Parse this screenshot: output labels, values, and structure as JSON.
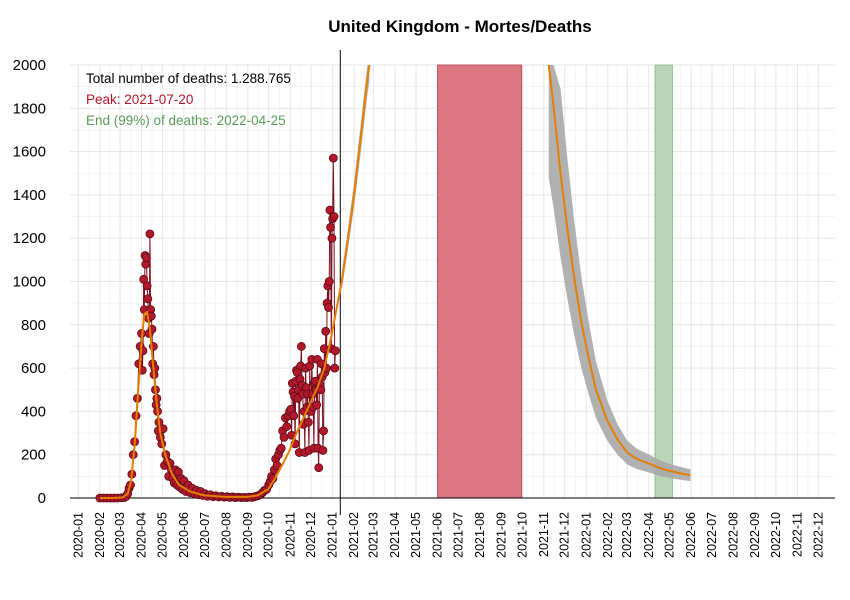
{
  "chart_data": {
    "type": "line",
    "title": "United Kingdom - Mortes/Deaths",
    "xlabel": "",
    "ylabel": "",
    "ylim": [
      0,
      2000
    ],
    "xlim": [
      "2019-12-20",
      "2022-12-25"
    ],
    "grid": true,
    "yticks": [
      0,
      200,
      400,
      600,
      800,
      1000,
      1200,
      1400,
      1600,
      1800,
      2000
    ],
    "ytick_labels": [
      "0",
      "200",
      "400",
      "600",
      "800",
      "1000",
      "1200",
      "1400",
      "1600",
      "1800",
      "2000"
    ],
    "xticks": [
      "2020-01-01",
      "2020-02-01",
      "2020-03-01",
      "2020-04-01",
      "2020-05-01",
      "2020-06-01",
      "2020-07-01",
      "2020-08-01",
      "2020-09-01",
      "2020-10-01",
      "2020-11-01",
      "2020-12-01",
      "2021-01-01",
      "2021-02-01",
      "2021-03-01",
      "2021-04-01",
      "2021-05-01",
      "2021-06-01",
      "2021-07-01",
      "2021-08-01",
      "2021-09-01",
      "2021-10-01",
      "2021-11-01",
      "2021-12-01",
      "2022-01-01",
      "2022-02-01",
      "2022-03-01",
      "2022-04-01",
      "2022-05-01",
      "2022-06-01",
      "2022-07-01",
      "2022-08-01",
      "2022-09-01",
      "2022-10-01",
      "2022-11-01",
      "2022-12-01"
    ],
    "xtick_labels": [
      "2020-01",
      "2020-02",
      "2020-03",
      "2020-04",
      "2020-05",
      "2020-06",
      "2020-07",
      "2020-08",
      "2020-09",
      "2020-10",
      "2020-11",
      "2020-12",
      "2021-01",
      "2021-02",
      "2021-03",
      "2021-04",
      "2021-05",
      "2021-06",
      "2021-07",
      "2021-08",
      "2021-09",
      "2021-10",
      "2021-11",
      "2021-12",
      "2022-01",
      "2022-02",
      "2022-03",
      "2022-04",
      "2022-05",
      "2022-06",
      "2022-07",
      "2022-08",
      "2022-09",
      "2022-10",
      "2022-11",
      "2022-12"
    ],
    "annotations": [
      {
        "text": "Total number of deaths: 1.288.765",
        "color": "#000000"
      },
      {
        "text": "Peak: 2021-07-20",
        "color": "#b2182b"
      },
      {
        "text": "End (99%) of deaths: 2022-04-25",
        "color": "#5a9e5a"
      }
    ],
    "current_date": "2021-01-12",
    "peak_band": {
      "start": "2021-06-01",
      "end": "2021-09-30",
      "color": "#d9707a"
    },
    "end_band": {
      "start": "2022-04-10",
      "end": "2022-05-05",
      "color": "#b5d3b5"
    },
    "colors": {
      "fit": "#e67e00",
      "observed": "#b2182b",
      "interval": "#a9a9a9"
    },
    "series": [
      {
        "kind": "observed",
        "points": [
          [
            "2020-02-01",
            0
          ],
          [
            "2020-02-06",
            0
          ],
          [
            "2020-02-11",
            0
          ],
          [
            "2020-02-16",
            0
          ],
          [
            "2020-02-21",
            0
          ],
          [
            "2020-02-26",
            0
          ],
          [
            "2020-03-03",
            1
          ],
          [
            "2020-03-07",
            2
          ],
          [
            "2020-03-10",
            8
          ],
          [
            "2020-03-12",
            20
          ],
          [
            "2020-03-14",
            45
          ],
          [
            "2020-03-16",
            60
          ],
          [
            "2020-03-18",
            110
          ],
          [
            "2020-03-20",
            200
          ],
          [
            "2020-03-22",
            260
          ],
          [
            "2020-03-24",
            380
          ],
          [
            "2020-03-26",
            460
          ],
          [
            "2020-03-28",
            620
          ],
          [
            "2020-03-30",
            700
          ],
          [
            "2020-04-01",
            760
          ],
          [
            "2020-04-02",
            590
          ],
          [
            "2020-04-03",
            680
          ],
          [
            "2020-04-04",
            1010
          ],
          [
            "2020-04-05",
            870
          ],
          [
            "2020-04-06",
            1120
          ],
          [
            "2020-04-07",
            1080
          ],
          [
            "2020-04-08",
            1110
          ],
          [
            "2020-04-09",
            980
          ],
          [
            "2020-04-10",
            920
          ],
          [
            "2020-04-11",
            830
          ],
          [
            "2020-04-12",
            760
          ],
          [
            "2020-04-13",
            1220
          ],
          [
            "2020-04-14",
            870
          ],
          [
            "2020-04-15",
            840
          ],
          [
            "2020-04-16",
            780
          ],
          [
            "2020-04-17",
            620
          ],
          [
            "2020-04-18",
            700
          ],
          [
            "2020-04-19",
            570
          ],
          [
            "2020-04-20",
            600
          ],
          [
            "2020-04-21",
            500
          ],
          [
            "2020-04-22",
            430
          ],
          [
            "2020-04-23",
            460
          ],
          [
            "2020-04-24",
            400
          ],
          [
            "2020-04-25",
            310
          ],
          [
            "2020-04-26",
            350
          ],
          [
            "2020-04-28",
            280
          ],
          [
            "2020-04-30",
            250
          ],
          [
            "2020-05-02",
            320
          ],
          [
            "2020-05-04",
            150
          ],
          [
            "2020-05-06",
            200
          ],
          [
            "2020-05-08",
            170
          ],
          [
            "2020-05-10",
            100
          ],
          [
            "2020-05-12",
            160
          ],
          [
            "2020-05-14",
            130
          ],
          [
            "2020-05-16",
            90
          ],
          [
            "2020-05-18",
            70
          ],
          [
            "2020-05-20",
            130
          ],
          [
            "2020-05-22",
            60
          ],
          [
            "2020-05-24",
            120
          ],
          [
            "2020-05-26",
            50
          ],
          [
            "2020-05-28",
            90
          ],
          [
            "2020-05-30",
            40
          ],
          [
            "2020-06-01",
            80
          ],
          [
            "2020-06-04",
            30
          ],
          [
            "2020-06-07",
            60
          ],
          [
            "2020-06-10",
            25
          ],
          [
            "2020-06-13",
            45
          ],
          [
            "2020-06-16",
            20
          ],
          [
            "2020-06-19",
            35
          ],
          [
            "2020-06-22",
            15
          ],
          [
            "2020-06-25",
            30
          ],
          [
            "2020-06-28",
            12
          ],
          [
            "2020-07-01",
            20
          ],
          [
            "2020-07-05",
            8
          ],
          [
            "2020-07-09",
            15
          ],
          [
            "2020-07-13",
            6
          ],
          [
            "2020-07-17",
            10
          ],
          [
            "2020-07-21",
            5
          ],
          [
            "2020-07-25",
            8
          ],
          [
            "2020-07-29",
            4
          ],
          [
            "2020-08-02",
            6
          ],
          [
            "2020-08-06",
            3
          ],
          [
            "2020-08-10",
            5
          ],
          [
            "2020-08-14",
            2
          ],
          [
            "2020-08-18",
            4
          ],
          [
            "2020-08-22",
            2
          ],
          [
            "2020-08-26",
            3
          ],
          [
            "2020-08-30",
            2
          ],
          [
            "2020-09-03",
            4
          ],
          [
            "2020-09-07",
            3
          ],
          [
            "2020-09-11",
            6
          ],
          [
            "2020-09-15",
            10
          ],
          [
            "2020-09-19",
            15
          ],
          [
            "2020-09-22",
            25
          ],
          [
            "2020-09-25",
            35
          ],
          [
            "2020-09-28",
            40
          ],
          [
            "2020-10-01",
            60
          ],
          [
            "2020-10-03",
            75
          ],
          [
            "2020-10-05",
            100
          ],
          [
            "2020-10-07",
            90
          ],
          [
            "2020-10-09",
            130
          ],
          [
            "2020-10-11",
            180
          ],
          [
            "2020-10-13",
            150
          ],
          [
            "2020-10-15",
            200
          ],
          [
            "2020-10-17",
            220
          ],
          [
            "2020-10-19",
            230
          ],
          [
            "2020-10-21",
            310
          ],
          [
            "2020-10-23",
            280
          ],
          [
            "2020-10-25",
            370
          ],
          [
            "2020-10-27",
            330
          ],
          [
            "2020-10-29",
            380
          ],
          [
            "2020-10-31",
            400
          ],
          [
            "2020-11-02",
            410
          ],
          [
            "2020-11-03",
            290
          ],
          [
            "2020-11-04",
            530
          ],
          [
            "2020-11-05",
            490
          ],
          [
            "2020-11-06",
            380
          ],
          [
            "2020-11-07",
            470
          ],
          [
            "2020-11-08",
            250
          ],
          [
            "2020-11-09",
            540
          ],
          [
            "2020-11-10",
            590
          ],
          [
            "2020-11-11",
            580
          ],
          [
            "2020-11-12",
            460
          ],
          [
            "2020-11-13",
            500
          ],
          [
            "2020-11-14",
            210
          ],
          [
            "2020-11-15",
            550
          ],
          [
            "2020-11-16",
            610
          ],
          [
            "2020-11-17",
            700
          ],
          [
            "2020-11-18",
            520
          ],
          [
            "2020-11-19",
            480
          ],
          [
            "2020-11-20",
            340
          ],
          [
            "2020-11-21",
            400
          ],
          [
            "2020-11-22",
            210
          ],
          [
            "2020-11-23",
            600
          ],
          [
            "2020-11-24",
            510
          ],
          [
            "2020-11-25",
            420
          ],
          [
            "2020-11-26",
            480
          ],
          [
            "2020-11-27",
            350
          ],
          [
            "2020-11-28",
            220
          ],
          [
            "2020-11-29",
            610
          ],
          [
            "2020-11-30",
            420
          ],
          [
            "2020-12-01",
            400
          ],
          [
            "2020-12-02",
            640
          ],
          [
            "2020-12-03",
            480
          ],
          [
            "2020-12-04",
            420
          ],
          [
            "2020-12-05",
            230
          ],
          [
            "2020-12-06",
            530
          ],
          [
            "2020-12-07",
            540
          ],
          [
            "2020-12-08",
            500
          ],
          [
            "2020-12-09",
            430
          ],
          [
            "2020-12-10",
            640
          ],
          [
            "2020-12-11",
            230
          ],
          [
            "2020-12-12",
            140
          ],
          [
            "2020-12-13",
            510
          ],
          [
            "2020-12-14",
            520
          ],
          [
            "2020-12-15",
            500
          ],
          [
            "2020-12-16",
            620
          ],
          [
            "2020-12-17",
            560
          ],
          [
            "2020-12-18",
            220
          ],
          [
            "2020-12-19",
            310
          ],
          [
            "2020-12-20",
            690
          ],
          [
            "2020-12-21",
            580
          ],
          [
            "2020-12-22",
            770
          ],
          [
            "2020-12-23",
            600
          ],
          [
            "2020-12-24",
            900
          ],
          [
            "2020-12-25",
            980
          ],
          [
            "2020-12-26",
            880
          ],
          [
            "2020-12-27",
            1000
          ],
          [
            "2020-12-28",
            1330
          ],
          [
            "2020-12-29",
            1250
          ],
          [
            "2020-12-30",
            690
          ],
          [
            "2020-12-31",
            1200
          ],
          [
            "2021-01-01",
            1290
          ],
          [
            "2021-01-02",
            1570
          ],
          [
            "2021-01-03",
            1300
          ],
          [
            "2021-01-04",
            600
          ],
          [
            "2021-01-05",
            680
          ]
        ]
      },
      {
        "kind": "fit",
        "points": [
          [
            "2020-02-01",
            0
          ],
          [
            "2020-02-20",
            0
          ],
          [
            "2020-03-05",
            3
          ],
          [
            "2020-03-12",
            20
          ],
          [
            "2020-03-17",
            80
          ],
          [
            "2020-03-22",
            240
          ],
          [
            "2020-03-27",
            490
          ],
          [
            "2020-04-01",
            720
          ],
          [
            "2020-04-05",
            850
          ],
          [
            "2020-04-09",
            860
          ],
          [
            "2020-04-13",
            780
          ],
          [
            "2020-04-18",
            600
          ],
          [
            "2020-04-23",
            430
          ],
          [
            "2020-04-28",
            300
          ],
          [
            "2020-05-05",
            200
          ],
          [
            "2020-05-15",
            110
          ],
          [
            "2020-05-25",
            60
          ],
          [
            "2020-06-10",
            30
          ],
          [
            "2020-06-30",
            12
          ],
          [
            "2020-07-31",
            5
          ],
          [
            "2020-08-31",
            5
          ],
          [
            "2020-09-15",
            12
          ],
          [
            "2020-09-30",
            40
          ],
          [
            "2020-10-10",
            90
          ],
          [
            "2020-10-20",
            150
          ],
          [
            "2020-10-31",
            220
          ],
          [
            "2020-11-10",
            300
          ],
          [
            "2020-11-20",
            370
          ],
          [
            "2020-11-30",
            440
          ],
          [
            "2020-12-10",
            510
          ],
          [
            "2020-12-20",
            600
          ],
          [
            "2020-12-31",
            760
          ],
          [
            "2021-01-07",
            880
          ],
          [
            "2021-01-14",
            1000
          ],
          [
            "2021-01-21",
            1150
          ],
          [
            "2021-01-31",
            1380
          ],
          [
            "2021-02-10",
            1650
          ],
          [
            "2021-02-20",
            1940
          ],
          [
            "2021-02-23",
            2000
          ]
        ]
      },
      {
        "kind": "fit",
        "points": [
          [
            "2021-11-08",
            2000
          ],
          [
            "2021-11-15",
            1810
          ],
          [
            "2021-11-25",
            1500
          ],
          [
            "2021-12-05",
            1240
          ],
          [
            "2021-12-15",
            1010
          ],
          [
            "2021-12-25",
            810
          ],
          [
            "2022-01-05",
            640
          ],
          [
            "2022-01-15",
            500
          ],
          [
            "2022-01-31",
            360
          ],
          [
            "2022-02-15",
            270
          ],
          [
            "2022-03-01",
            210
          ],
          [
            "2022-03-15",
            180
          ],
          [
            "2022-04-01",
            160
          ],
          [
            "2022-04-15",
            140
          ],
          [
            "2022-05-01",
            125
          ],
          [
            "2022-05-15",
            115
          ],
          [
            "2022-05-31",
            105
          ]
        ]
      }
    ]
  }
}
